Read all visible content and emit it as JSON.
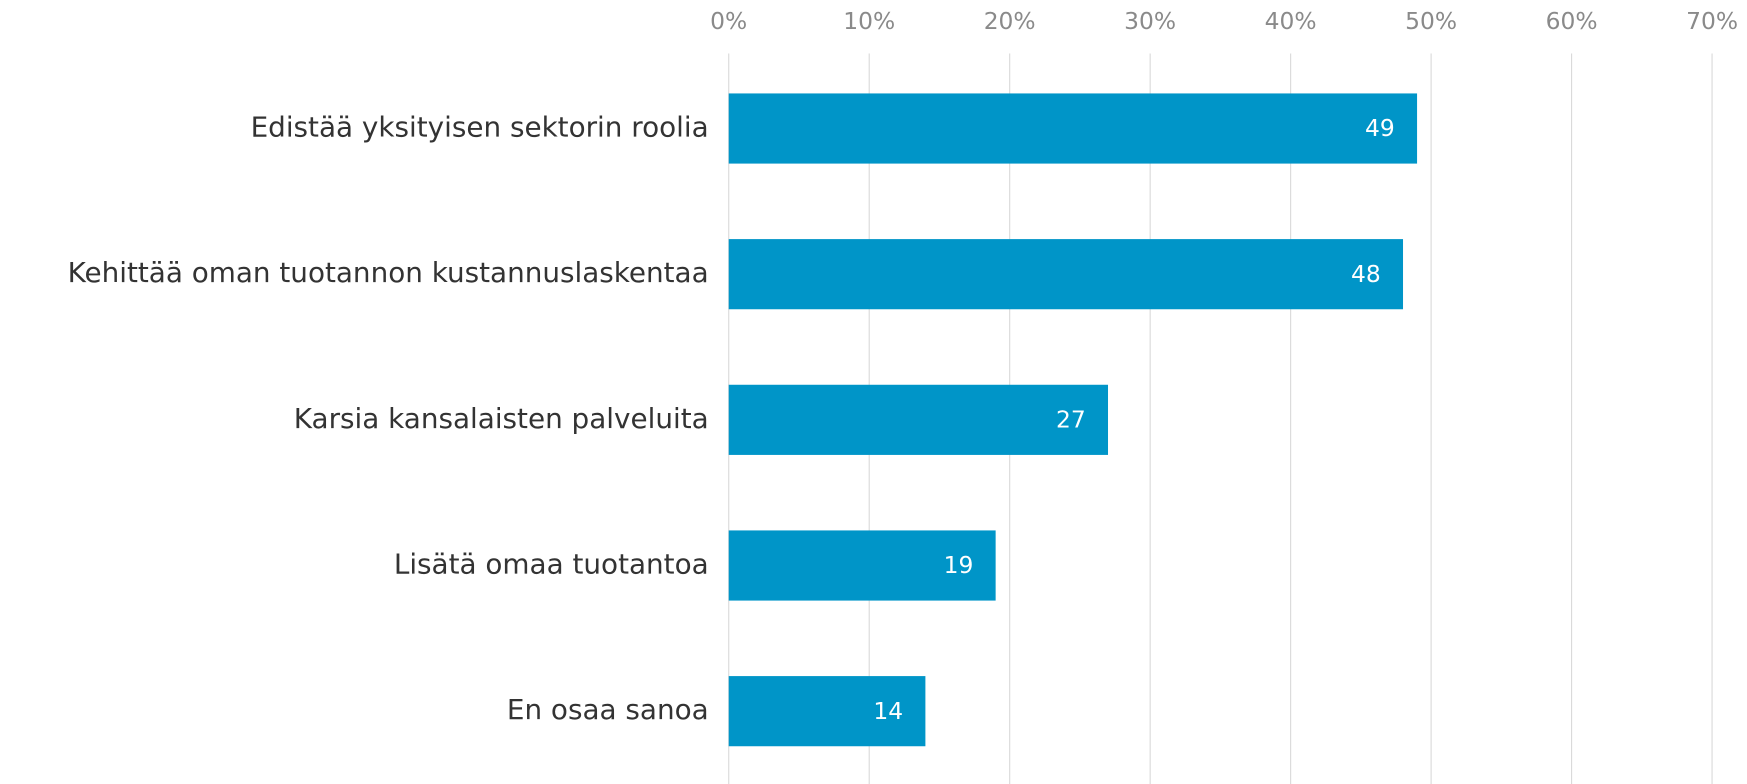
{
  "chart_data": {
    "type": "bar",
    "orientation": "horizontal",
    "categories": [
      "Edistää yksityisen sektorin roolia",
      "Kehittää oman tuotannon kustannuslaskentaa",
      "Karsia kansalaisten palveluita",
      "Lisätä omaa tuotantoa",
      "En osaa sanoa"
    ],
    "values": [
      49,
      48,
      27,
      19,
      14
    ],
    "color": "#0095c8",
    "xlim": [
      0,
      70
    ],
    "xticks": [
      {
        "value": 0,
        "label": "0%"
      },
      {
        "value": 10,
        "label": "10%"
      },
      {
        "value": 20,
        "label": "20%"
      },
      {
        "value": 30,
        "label": "30%"
      },
      {
        "value": 40,
        "label": "40%"
      },
      {
        "value": 50,
        "label": "50%"
      },
      {
        "value": 60,
        "label": "60%"
      },
      {
        "value": 70,
        "label": "70%"
      }
    ],
    "grid": true
  }
}
